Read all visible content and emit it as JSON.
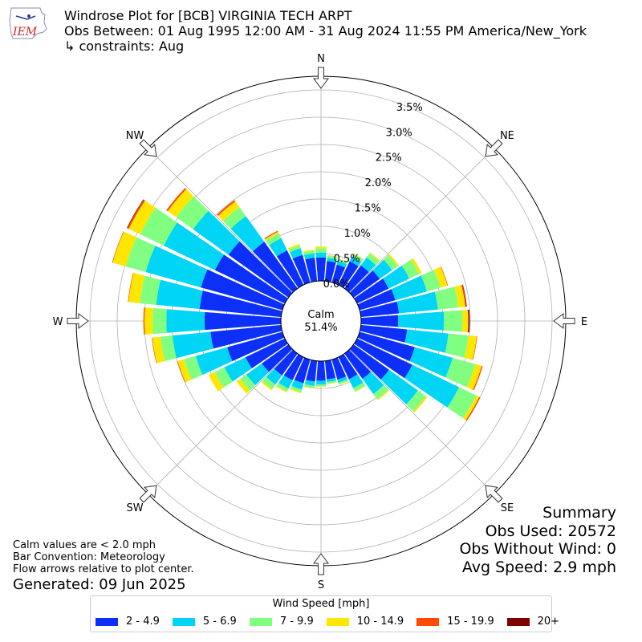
{
  "header": {
    "title": "Windrose Plot for [BCB] VIRGINIA TECH ARPT",
    "period": "Obs Between: 01 Aug 1995 12:00 AM - 31 Aug 2024 11:55 PM America/New_York",
    "constraints": "↳ constraints: Aug",
    "logo_text": "IEM"
  },
  "center": {
    "label": "Calm",
    "value": "51.4%"
  },
  "notes": {
    "calm": "Calm values are < 2.0 mph",
    "convention": "Bar Convention: Meteorology",
    "flow": "Flow arrows relative to plot center.",
    "generated": "Generated: 09 Jun 2025"
  },
  "summary": {
    "title": "Summary",
    "obs_used": "Obs Used: 20572",
    "obs_without_wind": "Obs Without Wind: 0",
    "avg_speed": "Avg Speed: 2.9 mph"
  },
  "legend": {
    "title": "Wind Speed [mph]"
  },
  "chart_data": {
    "type": "windrose",
    "directions_deg": [
      0,
      10,
      20,
      30,
      40,
      50,
      60,
      70,
      80,
      90,
      100,
      110,
      120,
      130,
      140,
      150,
      160,
      170,
      180,
      190,
      200,
      210,
      220,
      230,
      240,
      250,
      260,
      270,
      280,
      290,
      300,
      310,
      320,
      330,
      340,
      350
    ],
    "compass_labels": [
      {
        "label": "N",
        "deg": 0
      },
      {
        "label": "NE",
        "deg": 45
      },
      {
        "label": "E",
        "deg": 90
      },
      {
        "label": "SE",
        "deg": 135
      },
      {
        "label": "S",
        "deg": 180
      },
      {
        "label": "SW",
        "deg": 225
      },
      {
        "label": "W",
        "deg": 270
      },
      {
        "label": "NW",
        "deg": 315
      }
    ],
    "radial_ticks": [
      "0.0%",
      "0.5%",
      "1.0%",
      "1.5%",
      "2.0%",
      "2.5%",
      "3.0%",
      "3.5%"
    ],
    "radial_tick_values": [
      0,
      0.5,
      1.0,
      1.5,
      2.0,
      2.5,
      3.0,
      3.5
    ],
    "radial_max": 3.75,
    "calm_percent": 51.4,
    "series": [
      {
        "name": "2 - 4.9",
        "color": "#0c30f8",
        "values": [
          0.43,
          0.37,
          0.34,
          0.48,
          0.52,
          0.59,
          0.64,
          0.68,
          0.7,
          0.68,
          0.85,
          1.05,
          1.12,
          0.8,
          0.57,
          0.45,
          0.38,
          0.34,
          0.36,
          0.38,
          0.45,
          0.47,
          0.49,
          0.6,
          0.8,
          1.05,
          1.3,
          1.4,
          1.5,
          1.55,
          1.42,
          1.35,
          1.05,
          0.7,
          0.52,
          0.43
        ]
      },
      {
        "name": "5 - 6.9",
        "color": "#00d5f5",
        "values": [
          0.09,
          0.06,
          0.07,
          0.1,
          0.18,
          0.28,
          0.42,
          0.6,
          0.72,
          0.84,
          0.76,
          0.72,
          0.95,
          0.65,
          0.34,
          0.18,
          0.06,
          0.05,
          0.07,
          0.08,
          0.12,
          0.17,
          0.21,
          0.35,
          0.43,
          0.6,
          0.7,
          0.7,
          0.8,
          1.05,
          1.04,
          0.8,
          0.58,
          0.25,
          0.13,
          0.08
        ]
      },
      {
        "name": "7 - 9.9",
        "color": "#80ff80",
        "values": [
          0.08,
          0.04,
          0.03,
          0.05,
          0.09,
          0.12,
          0.2,
          0.26,
          0.37,
          0.34,
          0.37,
          0.43,
          0.35,
          0.18,
          0.12,
          0.07,
          0.03,
          0.03,
          0.03,
          0.04,
          0.05,
          0.06,
          0.1,
          0.14,
          0.2,
          0.22,
          0.22,
          0.25,
          0.3,
          0.38,
          0.48,
          0.38,
          0.2,
          0.1,
          0.05,
          0.05
        ]
      },
      {
        "name": "10 - 14.9",
        "color": "#ffe600",
        "values": [
          0.03,
          0.01,
          0.01,
          0.01,
          0.02,
          0.03,
          0.05,
          0.13,
          0.13,
          0.1,
          0.15,
          0.12,
          0.06,
          0.03,
          0.02,
          0.01,
          0.01,
          0.01,
          0.01,
          0.01,
          0.02,
          0.02,
          0.03,
          0.08,
          0.12,
          0.12,
          0.15,
          0.15,
          0.21,
          0.25,
          0.23,
          0.19,
          0.13,
          0.03,
          0.03,
          0.02
        ]
      },
      {
        "name": "15 - 19.9",
        "color": "#ff4a00",
        "values": [
          0,
          0,
          0,
          0,
          0,
          0,
          0,
          0.01,
          0.02,
          0.01,
          0.01,
          0.02,
          0.02,
          0,
          0,
          0,
          0,
          0,
          0,
          0,
          0,
          0,
          0,
          0,
          0,
          0.01,
          0.01,
          0.02,
          0.01,
          0.01,
          0.03,
          0.03,
          0.03,
          0.02,
          0,
          0
        ]
      },
      {
        "name": "20+",
        "color": "#7f0000",
        "values": [
          0,
          0,
          0,
          0,
          0,
          0,
          0,
          0,
          0.01,
          0.02,
          0,
          0,
          0,
          0,
          0,
          0,
          0,
          0,
          0,
          0,
          0,
          0,
          0,
          0,
          0,
          0,
          0,
          0,
          0,
          0,
          0.01,
          0,
          0,
          0,
          0,
          0
        ]
      }
    ]
  }
}
